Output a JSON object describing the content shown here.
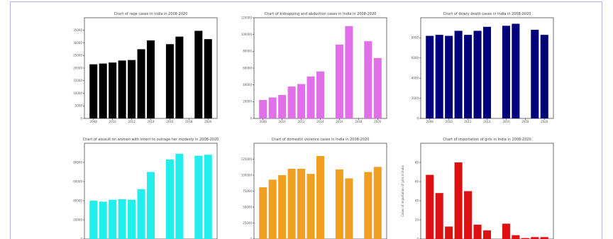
{
  "chart_data": [
    {
      "type": "bar",
      "title": "Chart of rape cases in India in 2008-2020",
      "color": "#000000",
      "categories": [
        "2008",
        "2009",
        "2010",
        "2011",
        "2012",
        "2013",
        "2014",
        "2015",
        "2016",
        "2017",
        "2018",
        "2019",
        "2020"
      ],
      "values": [
        21500,
        21800,
        22200,
        23000,
        23200,
        27500,
        31000,
        null,
        29500,
        32500,
        null,
        34800,
        31500
      ],
      "ylim": [
        0,
        40000
      ],
      "yticks": [
        "0",
        "5000",
        "10000",
        "15000",
        "20000",
        "25000",
        "30000",
        "35000"
      ],
      "xtick_labels": [
        "2008",
        "2010",
        "2012",
        "2014",
        "2016",
        "2018",
        "2020"
      ]
    },
    {
      "type": "bar",
      "title": "Chart of kidnapping and abduction cases in India in 2008-2020",
      "color": "#e070e8",
      "categories": [
        "2008",
        "2009",
        "2010",
        "2011",
        "2012",
        "2013",
        "2014",
        "2015",
        "2016",
        "2017",
        "2018",
        "2019",
        "2020"
      ],
      "values": [
        22000,
        25000,
        28000,
        38000,
        41000,
        50000,
        56000,
        null,
        88000,
        110000,
        null,
        92000,
        72000
      ],
      "ylim": [
        0,
        120000
      ],
      "yticks": [
        "0",
        "20000",
        "40000",
        "60000",
        "80000",
        "100000",
        "120000"
      ],
      "xtick_labels": [
        "2008",
        "2010",
        "2012",
        "2014",
        "2016",
        "2018",
        "2020"
      ]
    },
    {
      "type": "bar",
      "title": "Chart of dowry death cases in India in 2008-2020",
      "color": "#00007a",
      "categories": [
        "2008",
        "2009",
        "2010",
        "2011",
        "2012",
        "2013",
        "2014",
        "2015",
        "2016",
        "2017",
        "2018",
        "2019",
        "2020"
      ],
      "values": [
        8200,
        8300,
        8200,
        8700,
        8300,
        8700,
        9100,
        null,
        9200,
        9400,
        null,
        8800,
        8300
      ],
      "ylim": [
        0,
        10000
      ],
      "yticks": [
        "0",
        "2000",
        "4000",
        "6000",
        "8000"
      ],
      "xtick_labels": [
        "2008",
        "2010",
        "2012",
        "2014",
        "2016",
        "2018",
        "2020"
      ]
    },
    {
      "type": "bar",
      "title": "Chart of assault on women with intent to outrage her modesty in 2008-2020",
      "color": "#22eeee",
      "categories": [
        "2008",
        "2009",
        "2010",
        "2011",
        "2012",
        "2013",
        "2014",
        "2015",
        "2016",
        "2017",
        "2018",
        "2019",
        "2020"
      ],
      "values": [
        40000,
        39000,
        41000,
        41500,
        41000,
        52000,
        70000,
        null,
        83000,
        89000,
        null,
        87000,
        88000
      ],
      "ylim": [
        0,
        100000
      ],
      "yticks": [
        "0",
        "20000",
        "40000",
        "60000",
        "80000"
      ],
      "xtick_labels": [
        "2008",
        "2010",
        "2012",
        "2014",
        "2016",
        "2018",
        "2020"
      ]
    },
    {
      "type": "bar",
      "title": "Chart of domestic violence cases in India in 2008-2020",
      "color": "#f0a020",
      "categories": [
        "2008",
        "2009",
        "2010",
        "2011",
        "2012",
        "2013",
        "2014",
        "2015",
        "2016",
        "2017",
        "2018",
        "2019",
        "2020"
      ],
      "values": [
        81000,
        93000,
        100000,
        110000,
        110000,
        102000,
        130000,
        null,
        109000,
        95000,
        null,
        105000,
        113000
      ],
      "ylim": [
        0,
        150000
      ],
      "yticks": [
        "0",
        "25000",
        "50000",
        "75000",
        "100000",
        "125000"
      ],
      "xtick_labels": [
        "2008",
        "2010",
        "2012",
        "2014",
        "2016",
        "2018",
        "2020"
      ]
    },
    {
      "type": "bar",
      "title": "Chart of importation of girls in India in 2008-2020",
      "color": "#dd1111",
      "ylabel": "Cases of importation of girls in India",
      "categories": [
        "2008",
        "2009",
        "2010",
        "2011",
        "2012",
        "2013",
        "2014",
        "2015",
        "2016",
        "2017",
        "2018",
        "2019",
        "2020"
      ],
      "values": [
        67,
        48,
        13,
        80,
        50,
        15,
        9,
        null,
        16,
        4,
        1,
        2,
        2
      ],
      "ylim": [
        0,
        100
      ],
      "yticks": [
        "0",
        "20",
        "40",
        "60",
        "80"
      ],
      "xtick_labels": [
        "2008",
        "2010",
        "2012",
        "2014",
        "2016",
        "2018",
        "2020"
      ]
    }
  ]
}
